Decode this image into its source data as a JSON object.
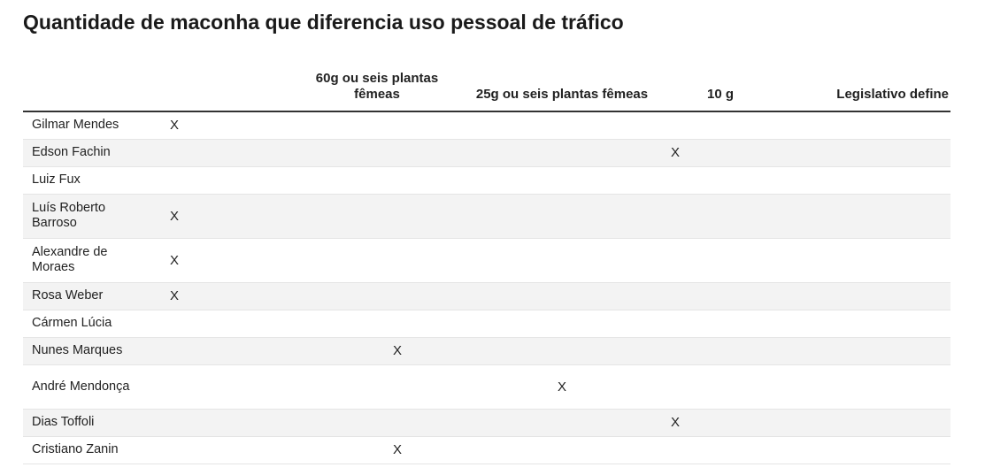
{
  "chart_data": {
    "type": "table",
    "title": "Quantidade de maconha que diferencia uso pessoal de tráfico",
    "columns": [
      "",
      "60g ou seis plantas fêmeas",
      "25g ou seis plantas fêmeas",
      "10 g",
      "Legislativo define"
    ],
    "rows": [
      {
        "name": "Gilmar Mendes",
        "cells": [
          "X",
          "",
          "",
          "",
          ""
        ]
      },
      {
        "name": "Edson Fachin",
        "cells": [
          "",
          "",
          "",
          "X",
          ""
        ]
      },
      {
        "name": "Luiz Fux",
        "cells": [
          "",
          "",
          "",
          "",
          ""
        ]
      },
      {
        "name": "Luís Roberto Barroso",
        "cells": [
          "X",
          "",
          "",
          "",
          ""
        ]
      },
      {
        "name": "Alexandre de Moraes",
        "cells": [
          "X",
          "",
          "",
          "",
          ""
        ]
      },
      {
        "name": "Rosa Weber",
        "cells": [
          "X",
          "",
          "",
          "",
          ""
        ]
      },
      {
        "name": "Cármen Lúcia",
        "cells": [
          "",
          "",
          "",
          "",
          ""
        ]
      },
      {
        "name": "Nunes Marques",
        "cells": [
          "",
          "X",
          "",
          "",
          ""
        ]
      },
      {
        "name": "André Mendonça",
        "cells": [
          "",
          "",
          "X",
          "",
          ""
        ]
      },
      {
        "name": "Dias Toffoli",
        "cells": [
          "",
          "",
          "",
          "X",
          ""
        ]
      },
      {
        "name": "Cristiano Zanin",
        "cells": [
          "",
          "X",
          "",
          "",
          ""
        ]
      }
    ]
  }
}
